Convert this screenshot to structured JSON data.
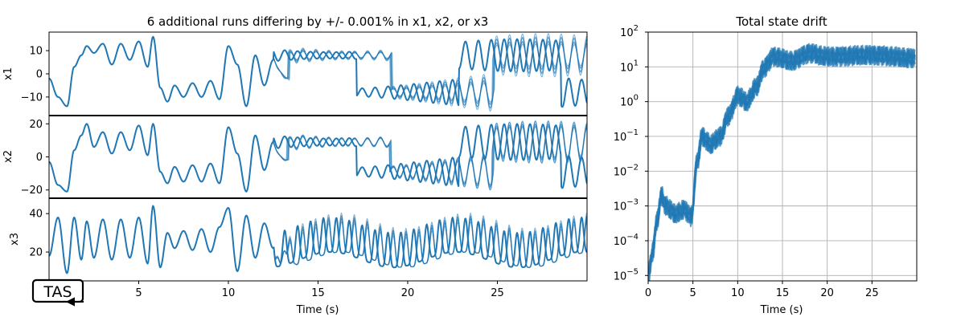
{
  "figure": {
    "logo_text": "TAS",
    "colors": {
      "series": "#1f77b4",
      "grid": "#b0b0b0",
      "axis": "#000000",
      "background": "#ffffff"
    }
  },
  "chart_data": [
    {
      "type": "line",
      "title": "6 additional runs differing by +/- 0.001% in x1, x2, or x3",
      "xlabel": "Time (s)",
      "xlim": [
        0,
        30
      ],
      "x_ticks": [
        5,
        10,
        15,
        20,
        25
      ],
      "divergence_time": 12.3,
      "n_additional_runs": 6,
      "grid": false,
      "panels": [
        {
          "ylabel": "x1",
          "ylim": [
            -18,
            18
          ],
          "y_ticks": [
            -10,
            0,
            10
          ],
          "samples": {
            "t": [
              0,
              0.5,
              1.0,
              1.4,
              1.8,
              2.1,
              2.5,
              3.0,
              3.5,
              4.0,
              4.5,
              5.0,
              5.5,
              5.8,
              6.2,
              6.6,
              7.0,
              7.5,
              8.0,
              8.5,
              9.0,
              9.5,
              10.0,
              10.5,
              11.0,
              11.5,
              12.0,
              12.5
            ],
            "x1": [
              -2,
              -10,
              -14,
              3,
              8,
              12,
              9,
              13,
              4,
              13,
              6,
              14,
              3,
              16,
              -6,
              -12,
              -5,
              -10,
              -4,
              -10,
              -3,
              -11,
              12,
              4,
              -14,
              8,
              -5,
              6
            ]
          }
        },
        {
          "ylabel": "x2",
          "ylim": [
            -25,
            25
          ],
          "y_ticks": [
            -20,
            0,
            20
          ],
          "samples": {
            "t": [
              0,
              0.5,
              1.0,
              1.4,
              1.8,
              2.1,
              2.5,
              3.0,
              3.5,
              4.0,
              4.5,
              5.0,
              5.5,
              5.8,
              6.2,
              6.6,
              7.0,
              7.5,
              8.0,
              8.5,
              9.0,
              9.5,
              10.0,
              10.5,
              11.0,
              11.5,
              12.0,
              12.5
            ],
            "x2": [
              -3,
              -17,
              -21,
              4,
              13,
              20,
              6,
              15,
              2,
              15,
              4,
              19,
              1,
              20,
              -9,
              -16,
              -6,
              -15,
              -5,
              -15,
              -4,
              -16,
              18,
              2,
              -21,
              13,
              -8,
              9
            ]
          }
        },
        {
          "ylabel": "x3",
          "ylim": [
            5,
            48
          ],
          "y_ticks": [
            20,
            40
          ],
          "samples": {
            "t": [
              0,
              0.5,
              1.0,
              1.4,
              1.8,
              2.1,
              2.5,
              3.0,
              3.5,
              4.0,
              4.5,
              5.0,
              5.5,
              5.8,
              6.2,
              6.6,
              7.0,
              7.5,
              8.0,
              8.5,
              9.0,
              9.5,
              10.0,
              10.5,
              11.0,
              11.5,
              12.0,
              12.5
            ],
            "x3": [
              18,
              38,
              9,
              38,
              16,
              36,
              17,
              37,
              16,
              37,
              17,
              38,
              14,
              44,
              12,
              30,
              22,
              31,
              21,
              32,
              20,
              33,
              43,
              10,
              39,
              17,
              35,
              22
            ]
          }
        }
      ]
    },
    {
      "type": "line",
      "title": "Total state drift",
      "xlabel": "Time (s)",
      "xlim": [
        0,
        30
      ],
      "x_ticks": [
        0,
        5,
        10,
        15,
        20,
        25
      ],
      "x_tick_labels": [
        "0",
        "5",
        "10",
        "15",
        "20",
        "25"
      ],
      "ylim": [
        7e-06,
        100
      ],
      "y_scale": "log",
      "y_ticks": [
        1e-05,
        0.0001,
        0.001,
        0.01,
        0.1,
        1,
        10,
        100
      ],
      "y_tick_bases": [
        "10",
        "10",
        "10",
        "10",
        "10",
        "10",
        "10",
        "10"
      ],
      "y_tick_exponents": [
        "−5",
        "−4",
        "−3",
        "−2",
        "−1",
        "0",
        "1",
        "2"
      ],
      "grid": true,
      "n_runs": 6,
      "drift_samples": {
        "t": [
          0,
          0.5,
          1.0,
          1.5,
          2.0,
          3.0,
          4.0,
          4.8,
          5.5,
          6.0,
          7.0,
          8.0,
          9.0,
          10.0,
          11.0,
          12.0,
          13.0,
          14.0,
          16.0,
          18.0,
          20.0,
          25.0,
          29.8
        ],
        "drift": [
          1e-05,
          5e-05,
          0.0004,
          0.002,
          0.001,
          0.0006,
          0.0008,
          0.0005,
          0.02,
          0.1,
          0.06,
          0.1,
          0.4,
          1.5,
          1.0,
          2.5,
          10,
          20,
          15,
          25,
          20,
          22,
          18
        ]
      }
    }
  ]
}
